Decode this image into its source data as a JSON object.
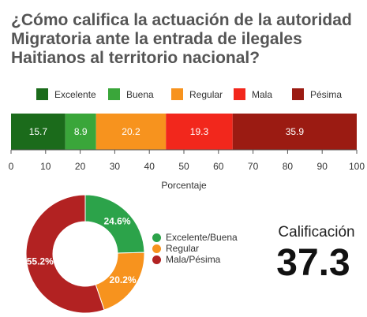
{
  "title": {
    "line1": "¿Cómo califica la actuación de la autoridad",
    "line2": "Migratoria ante la entrada de ilegales",
    "line3": "Haitianos al territorio nacional?"
  },
  "chart_data": [
    {
      "type": "bar",
      "orientation": "horizontal",
      "stacked": true,
      "xlabel": "Porcentaje",
      "xlim": [
        0,
        100
      ],
      "xticks": [
        "0",
        "10",
        "20",
        "30",
        "40",
        "50",
        "60",
        "70",
        "80",
        "90",
        "100"
      ],
      "legend_position": "top",
      "series": [
        {
          "name": "Excelente",
          "values": [
            15.7
          ],
          "color": "#1b6b1b"
        },
        {
          "name": "Buena",
          "values": [
            8.9
          ],
          "color": "#3aa63a"
        },
        {
          "name": "Regular",
          "values": [
            20.2
          ],
          "color": "#f7931e"
        },
        {
          "name": "Mala",
          "values": [
            19.3
          ],
          "color": "#f2271c"
        },
        {
          "name": "Pésima",
          "values": [
            35.9
          ],
          "color": "#9b1b12"
        }
      ]
    },
    {
      "type": "pie",
      "donut": true,
      "legend_position": "right",
      "slices": [
        {
          "name": "Excelente/Buena",
          "value": 24.6,
          "label": "24.6%",
          "color": "#2ca34a"
        },
        {
          "name": "Regular",
          "value": 20.2,
          "label": "20.2%",
          "color": "#f7931e"
        },
        {
          "name": "Mala/Pésima",
          "value": 55.2,
          "label": "55.2%",
          "color": "#b22222"
        }
      ]
    }
  ],
  "score": {
    "label": "Calificación",
    "value": "37.3"
  }
}
